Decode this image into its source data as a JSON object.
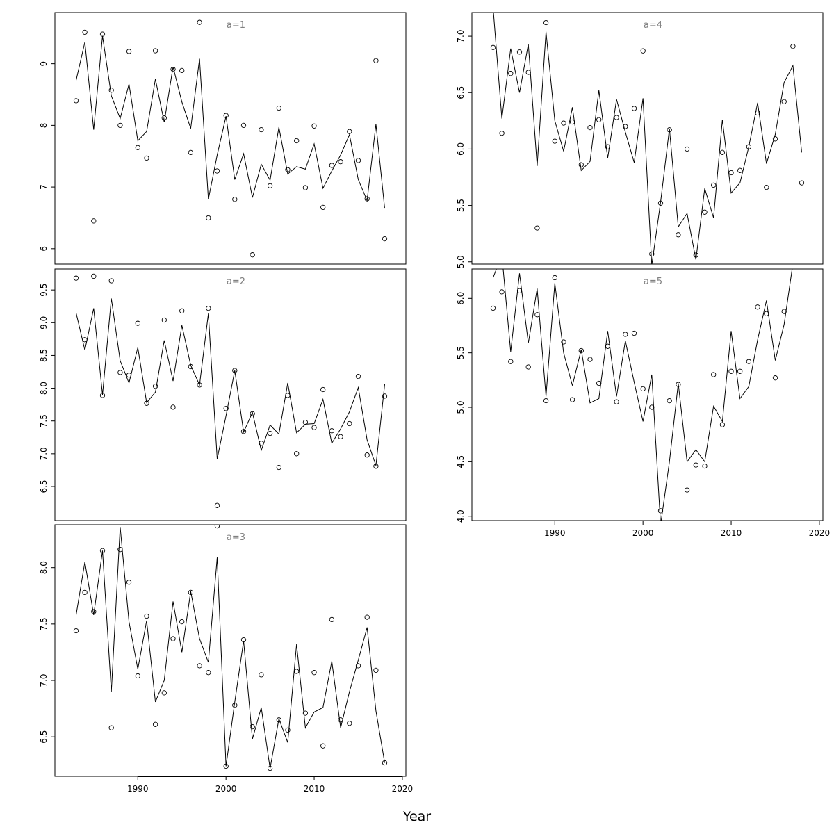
{
  "xlabel": "Year",
  "chart_data": [
    {
      "type": "scatter",
      "label": "a=1",
      "xlim": [
        1980.6,
        2020.4
      ],
      "ylim": [
        5.75,
        9.83
      ],
      "yticks": [
        6,
        7,
        8,
        9
      ],
      "xticks": [],
      "observed": {
        "x": [
          1983,
          1984,
          1985,
          1986,
          1987,
          1988,
          1989,
          1990,
          1991,
          1992,
          1993,
          1994,
          1995,
          1996,
          1997,
          1998,
          1999,
          2000,
          2001,
          2002,
          2003,
          2004,
          2005,
          2006,
          2007,
          2008,
          2009,
          2010,
          2011,
          2012,
          2013,
          2014,
          2015,
          2016,
          2017,
          2018
        ],
        "y": [
          8.4,
          9.51,
          6.45,
          9.48,
          8.57,
          8.0,
          9.2,
          7.64,
          7.47,
          9.21,
          8.12,
          8.91,
          8.89,
          7.56,
          9.67,
          6.5,
          7.26,
          8.16,
          6.8,
          8.0,
          5.9,
          7.93,
          7.02,
          8.28,
          7.28,
          7.75,
          6.99,
          7.99,
          6.67,
          7.35,
          7.41,
          7.9,
          7.43,
          6.81,
          9.05,
          6.16
        ]
      },
      "fitted": {
        "x": [
          1983,
          1984,
          1985,
          1986,
          1987,
          1988,
          1989,
          1990,
          1991,
          1992,
          1993,
          1994,
          1995,
          1996,
          1997,
          1998,
          1999,
          2000,
          2001,
          2002,
          2003,
          2004,
          2005,
          2006,
          2007,
          2008,
          2009,
          2010,
          2011,
          2012,
          2013,
          2014,
          2015,
          2016,
          2017,
          2018
        ],
        "y": [
          8.73,
          9.35,
          7.93,
          9.45,
          8.48,
          8.11,
          8.67,
          7.75,
          7.9,
          8.75,
          8.05,
          8.95,
          8.38,
          7.95,
          9.08,
          6.8,
          7.52,
          8.15,
          7.12,
          7.54,
          6.83,
          7.37,
          7.11,
          7.97,
          7.21,
          7.33,
          7.29,
          7.7,
          6.98,
          7.26,
          7.52,
          7.85,
          7.12,
          6.78,
          8.02,
          6.65
        ]
      }
    },
    {
      "type": "scatter",
      "label": "a=2",
      "xlim": [
        1980.6,
        2020.4
      ],
      "ylim": [
        5.98,
        9.82
      ],
      "yticks": [
        6.5,
        7.0,
        7.5,
        8.0,
        8.5,
        9.0,
        9.5
      ],
      "xticks": [],
      "observed": {
        "x": [
          1983,
          1984,
          1985,
          1986,
          1987,
          1988,
          1989,
          1990,
          1991,
          1992,
          1993,
          1994,
          1995,
          1996,
          1997,
          1998,
          1999,
          2000,
          2001,
          2002,
          2003,
          2004,
          2005,
          2006,
          2007,
          2008,
          2009,
          2010,
          2011,
          2012,
          2013,
          2014,
          2015,
          2016,
          2017,
          2018
        ],
        "y": [
          9.68,
          8.74,
          9.71,
          7.89,
          9.64,
          8.24,
          8.2,
          8.99,
          7.77,
          8.03,
          9.04,
          7.71,
          9.18,
          8.33,
          8.05,
          9.22,
          6.21,
          7.69,
          8.27,
          7.34,
          7.61,
          7.16,
          7.31,
          6.79,
          7.89,
          7.0,
          7.48,
          7.4,
          7.98,
          7.35,
          7.26,
          7.46,
          8.18,
          6.98,
          6.81,
          7.88
        ]
      },
      "fitted": {
        "x": [
          1983,
          1984,
          1985,
          1986,
          1987,
          1988,
          1989,
          1990,
          1991,
          1992,
          1993,
          1994,
          1995,
          1996,
          1997,
          1998,
          1999,
          2000,
          2001,
          2002,
          2003,
          2004,
          2005,
          2006,
          2007,
          2008,
          2009,
          2010,
          2011,
          2012,
          2013,
          2014,
          2015,
          2016,
          2017,
          2018
        ],
        "y": [
          9.15,
          8.58,
          9.22,
          7.9,
          9.37,
          8.42,
          8.08,
          8.62,
          7.78,
          7.94,
          8.73,
          8.11,
          8.96,
          8.35,
          8.05,
          9.14,
          6.92,
          7.58,
          8.27,
          7.33,
          7.63,
          7.05,
          7.44,
          7.3,
          8.08,
          7.32,
          7.45,
          7.46,
          7.83,
          7.16,
          7.38,
          7.64,
          8.01,
          7.21,
          6.82,
          8.06
        ]
      }
    },
    {
      "type": "scatter",
      "label": "a=3",
      "xlim": [
        1980.6,
        2020.4
      ],
      "ylim": [
        6.15,
        8.38
      ],
      "yticks": [
        6.5,
        7.0,
        7.5,
        8.0
      ],
      "xticks": [
        1990,
        2000,
        2010,
        2020
      ],
      "observed": {
        "x": [
          1983,
          1984,
          1985,
          1986,
          1987,
          1988,
          1989,
          1990,
          1991,
          1992,
          1993,
          1994,
          1995,
          1996,
          1997,
          1998,
          1999,
          2000,
          2001,
          2002,
          2003,
          2004,
          2005,
          2006,
          2007,
          2008,
          2009,
          2010,
          2011,
          2012,
          2013,
          2014,
          2015,
          2016,
          2017,
          2018
        ],
        "y": [
          7.44,
          7.78,
          7.61,
          8.15,
          6.58,
          8.16,
          7.87,
          7.04,
          7.57,
          6.61,
          6.89,
          7.37,
          7.52,
          7.78,
          7.13,
          7.07,
          8.37,
          6.24,
          6.78,
          7.36,
          6.59,
          7.05,
          6.22,
          6.65,
          6.56,
          7.08,
          6.71,
          7.07,
          6.42,
          7.54,
          6.65,
          6.62,
          7.13,
          7.56,
          7.09,
          6.27
        ]
      },
      "fitted": {
        "x": [
          1983,
          1984,
          1985,
          1986,
          1987,
          1988,
          1989,
          1990,
          1991,
          1992,
          1993,
          1994,
          1995,
          1996,
          1997,
          1998,
          1999,
          2000,
          2001,
          2002,
          2003,
          2004,
          2005,
          2006,
          2007,
          2008,
          2009,
          2010,
          2011,
          2012,
          2013,
          2014,
          2015,
          2016,
          2017,
          2018
        ],
        "y": [
          7.58,
          8.05,
          7.58,
          8.15,
          6.9,
          8.36,
          7.52,
          7.1,
          7.53,
          6.81,
          7.0,
          7.7,
          7.25,
          7.79,
          7.37,
          7.16,
          8.09,
          6.24,
          6.81,
          7.35,
          6.48,
          6.76,
          6.22,
          6.66,
          6.45,
          7.32,
          6.58,
          6.72,
          6.76,
          7.17,
          6.58,
          6.9,
          7.18,
          7.47,
          6.73,
          6.27
        ]
      }
    },
    {
      "type": "scatter",
      "label": "a=4",
      "xlim": [
        1980.6,
        2020.4
      ],
      "ylim": [
        4.98,
        7.21
      ],
      "yticks": [
        5.0,
        5.5,
        6.0,
        6.5,
        7.0
      ],
      "xticks": [],
      "observed": {
        "x": [
          1983,
          1984,
          1985,
          1986,
          1987,
          1988,
          1989,
          1990,
          1991,
          1992,
          1993,
          1994,
          1995,
          1996,
          1997,
          1998,
          1999,
          2000,
          2001,
          2002,
          2003,
          2004,
          2005,
          2006,
          2007,
          2008,
          2009,
          2010,
          2011,
          2012,
          2013,
          2014,
          2015,
          2016,
          2017,
          2018
        ],
        "y": [
          6.9,
          6.14,
          6.67,
          6.86,
          6.68,
          5.3,
          7.12,
          6.07,
          6.23,
          6.24,
          5.86,
          6.19,
          6.26,
          6.02,
          6.28,
          6.2,
          6.36,
          6.87,
          5.07,
          5.52,
          6.17,
          5.24,
          6.0,
          5.06,
          5.44,
          5.68,
          5.97,
          5.79,
          5.81,
          6.02,
          6.32,
          5.66,
          6.09,
          6.42,
          6.91,
          5.7
        ]
      },
      "fitted": {
        "x": [
          1983,
          1984,
          1985,
          1986,
          1987,
          1988,
          1989,
          1990,
          1991,
          1992,
          1993,
          1994,
          1995,
          1996,
          1997,
          1998,
          1999,
          2000,
          2001,
          2002,
          2003,
          2004,
          2005,
          2006,
          2007,
          2008,
          2009,
          2010,
          2011,
          2012,
          2013,
          2014,
          2015,
          2016,
          2017,
          2018
        ],
        "y": [
          7.25,
          6.27,
          6.89,
          6.5,
          6.93,
          5.85,
          7.04,
          6.25,
          5.98,
          6.37,
          5.81,
          5.89,
          6.52,
          5.92,
          6.44,
          6.15,
          5.88,
          6.45,
          4.97,
          5.53,
          6.18,
          5.31,
          5.43,
          5.02,
          5.65,
          5.39,
          6.26,
          5.61,
          5.7,
          6.02,
          6.41,
          5.87,
          6.13,
          6.59,
          6.74,
          5.97
        ]
      }
    },
    {
      "type": "scatter",
      "label": "a=5",
      "xlim": [
        1980.6,
        2020.4
      ],
      "ylim": [
        3.96,
        6.27
      ],
      "yticks": [
        4.0,
        4.5,
        5.0,
        5.5,
        6.0
      ],
      "xticks": [
        1990,
        2000,
        2010,
        2020
      ],
      "observed": {
        "x": [
          1983,
          1984,
          1985,
          1986,
          1987,
          1988,
          1989,
          1990,
          1991,
          1992,
          1993,
          1994,
          1995,
          1996,
          1997,
          1998,
          1999,
          2000,
          2001,
          2002,
          2003,
          2004,
          2005,
          2006,
          2007,
          2008,
          2009,
          2010,
          2011,
          2012,
          2013,
          2014,
          2015,
          2016
        ],
        "y": [
          5.91,
          6.06,
          5.42,
          6.07,
          5.37,
          5.85,
          5.06,
          6.19,
          5.6,
          5.07,
          5.52,
          5.44,
          5.22,
          5.56,
          5.05,
          5.67,
          5.68,
          5.17,
          5.0,
          4.05,
          5.06,
          5.21,
          4.24,
          4.47,
          4.46,
          5.3,
          4.84,
          5.33,
          5.33,
          5.42,
          5.92,
          5.86,
          5.27,
          5.88
        ]
      },
      "fitted": {
        "x": [
          1983,
          1984,
          1985,
          1986,
          1987,
          1988,
          1989,
          1990,
          1991,
          1992,
          1993,
          1994,
          1995,
          1996,
          1997,
          1998,
          1999,
          2000,
          2001,
          2002,
          2003,
          2004,
          2005,
          2006,
          2007,
          2008,
          2009,
          2010,
          2011,
          2012,
          2013,
          2014,
          2015,
          2016,
          2017
        ],
        "y": [
          6.19,
          6.4,
          5.51,
          6.23,
          5.59,
          6.09,
          5.1,
          6.14,
          5.5,
          5.2,
          5.53,
          5.04,
          5.08,
          5.7,
          5.1,
          5.61,
          5.23,
          4.87,
          5.3,
          3.92,
          4.5,
          5.22,
          4.5,
          4.61,
          4.5,
          5.01,
          4.87,
          5.7,
          5.08,
          5.19,
          5.62,
          5.98,
          5.43,
          5.76,
          6.32
        ]
      }
    }
  ]
}
